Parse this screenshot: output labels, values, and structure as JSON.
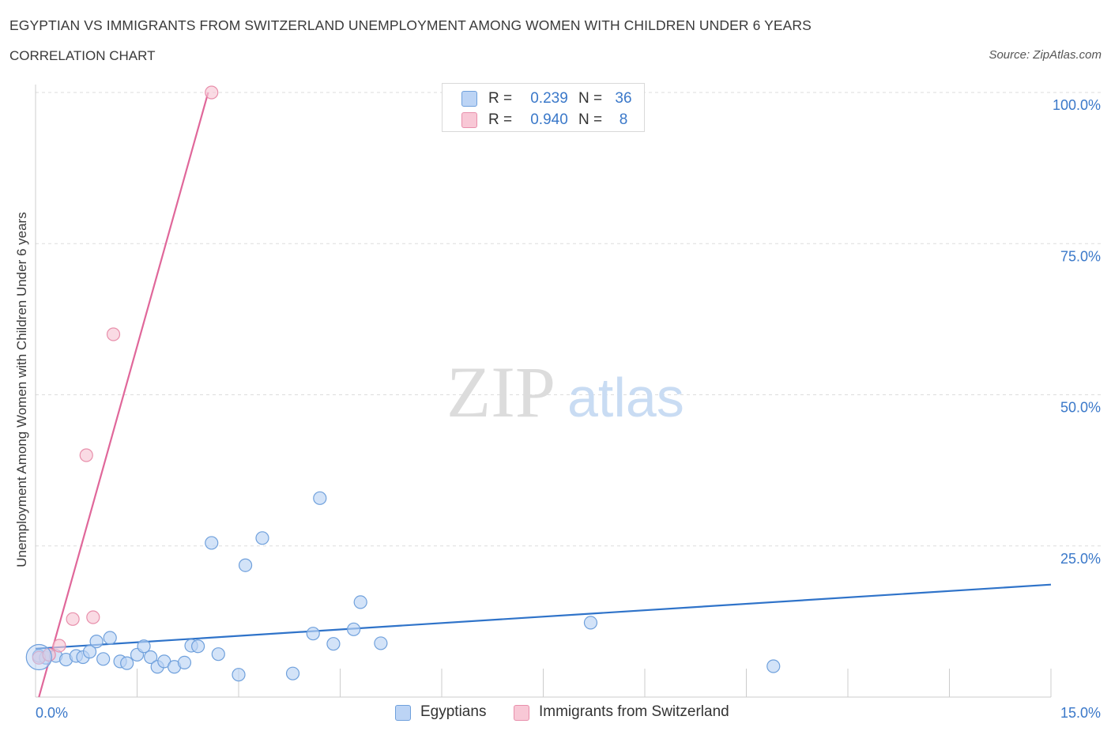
{
  "title": "EGYPTIAN VS IMMIGRANTS FROM SWITZERLAND UNEMPLOYMENT AMONG WOMEN WITH CHILDREN UNDER 6 YEARS",
  "subtitle": "CORRELATION CHART",
  "source": "Source: ZipAtlas.com",
  "watermark": {
    "zip": "ZIP",
    "atlas": "atlas"
  },
  "colors": {
    "blue_fill": "#bcd4f5",
    "blue_stroke": "#6fa0dc",
    "blue_line": "#2f73c9",
    "pink_fill": "#f8c8d6",
    "pink_stroke": "#e88fab",
    "pink_line": "#e0679a",
    "tick_text": "#3a78c9",
    "grid": "#dddddd"
  },
  "legend": {
    "rows": [
      {
        "r_label": "R =",
        "r_value": "0.239",
        "n_label": "N =",
        "n_value": "36",
        "color": "blue"
      },
      {
        "r_label": "R =",
        "r_value": "0.940",
        "n_label": "N =",
        "n_value": "8",
        "color": "pink"
      }
    ]
  },
  "bottom_legend": [
    {
      "label": "Egyptians",
      "color": "blue"
    },
    {
      "label": "Immigrants from Switzerland",
      "color": "pink"
    }
  ],
  "chart_data": {
    "type": "scatter",
    "title": "EGYPTIAN VS IMMIGRANTS FROM SWITZERLAND UNEMPLOYMENT AMONG WOMEN WITH CHILDREN UNDER 6 YEARS",
    "subtitle": "CORRELATION CHART",
    "xlabel": "",
    "ylabel": "Unemployment Among Women with Children Under 6 years",
    "xlim": [
      0,
      15
    ],
    "ylim": [
      0,
      100
    ],
    "x_tick_labels": [
      "0.0%",
      "15.0%"
    ],
    "y_ticks": [
      25,
      50,
      75,
      100
    ],
    "y_tick_labels": [
      "25.0%",
      "50.0%",
      "75.0%",
      "100.0%"
    ],
    "grid": true,
    "legend_position": "top-center",
    "series": [
      {
        "name": "Egyptians",
        "color": "blue",
        "points": [
          [
            0.05,
            6.8
          ],
          [
            0.15,
            6.5
          ],
          [
            0.2,
            7.0
          ],
          [
            0.3,
            6.8
          ],
          [
            0.45,
            6.2
          ],
          [
            0.6,
            6.8
          ],
          [
            0.7,
            6.6
          ],
          [
            0.8,
            7.5
          ],
          [
            0.9,
            9.2
          ],
          [
            1.0,
            6.3
          ],
          [
            1.1,
            9.8
          ],
          [
            1.25,
            5.9
          ],
          [
            1.35,
            5.6
          ],
          [
            1.5,
            7.0
          ],
          [
            1.6,
            8.4
          ],
          [
            1.7,
            6.6
          ],
          [
            1.8,
            5.0
          ],
          [
            1.9,
            5.9
          ],
          [
            2.05,
            5.0
          ],
          [
            2.2,
            5.7
          ],
          [
            2.3,
            8.5
          ],
          [
            2.4,
            8.4
          ],
          [
            2.6,
            25.5
          ],
          [
            2.7,
            7.1
          ],
          [
            3.0,
            3.7
          ],
          [
            3.1,
            21.8
          ],
          [
            3.35,
            26.3
          ],
          [
            3.8,
            3.9
          ],
          [
            4.1,
            10.5
          ],
          [
            4.2,
            32.9
          ],
          [
            4.4,
            8.8
          ],
          [
            4.7,
            11.2
          ],
          [
            4.8,
            15.7
          ],
          [
            5.1,
            8.9
          ],
          [
            8.2,
            12.3
          ],
          [
            10.9,
            5.1
          ]
        ],
        "trend": {
          "x": [
            0,
            15
          ],
          "y": [
            8.0,
            18.6
          ]
        }
      },
      {
        "name": "Immigrants from Switzerland",
        "color": "pink",
        "points": [
          [
            0.05,
            6.5
          ],
          [
            0.2,
            7.0
          ],
          [
            0.35,
            8.5
          ],
          [
            0.55,
            12.9
          ],
          [
            0.75,
            40.0
          ],
          [
            0.85,
            13.2
          ],
          [
            1.15,
            60.0
          ],
          [
            2.6,
            100.0
          ]
        ],
        "trend": {
          "x": [
            0.05,
            2.55
          ],
          "y": [
            0,
            100
          ]
        }
      }
    ]
  }
}
